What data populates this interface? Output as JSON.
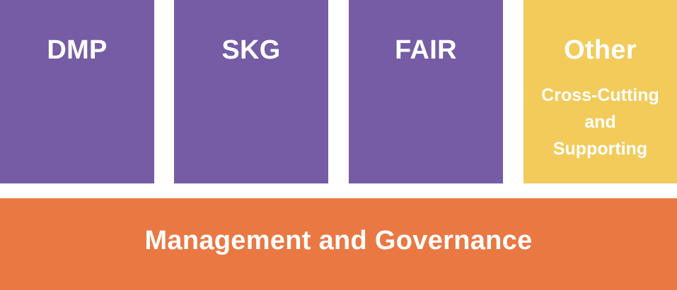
{
  "pillars": [
    {
      "title": "DMP",
      "color": "#755ca4"
    },
    {
      "title": "SKG",
      "color": "#755ca4"
    },
    {
      "title": "FAIR",
      "color": "#755ca4"
    },
    {
      "title": "Other",
      "color": "#f2cb5b",
      "subtitle_lines": [
        "Cross-Cutting",
        "and",
        "Supporting"
      ]
    }
  ],
  "base": {
    "title": "Management and Governance",
    "color": "#e97843"
  }
}
